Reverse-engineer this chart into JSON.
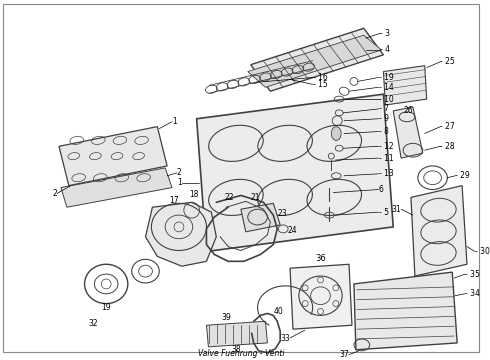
{
  "background_color": "#ffffff",
  "line_color": "#404040",
  "text_color": "#000000",
  "figsize": [
    4.9,
    3.6
  ],
  "dpi": 100,
  "label_fontsize": 5.5,
  "bottom_text": "Valve Fuehrung - Venti",
  "title_fontsize": 6
}
